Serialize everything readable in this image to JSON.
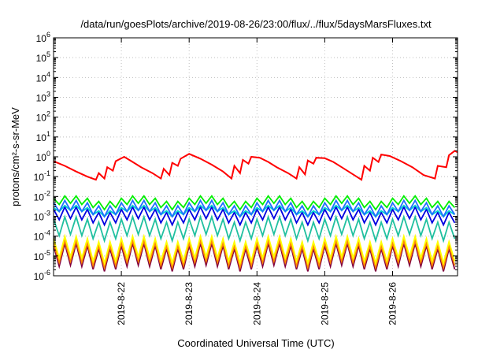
{
  "chart_data": {
    "type": "line",
    "title": "/data/run/goesPlots/archive/2019-08-26/23:00/flux/../flux/5daysMarsFluxes.txt",
    "xlabel": "Coordinated Universal Time (UTC)",
    "ylabel": "protons/cm²-s-sr-MeV",
    "xlim": [
      "2019-08-21 00:00",
      "2019-08-26 23:00"
    ],
    "ylim": [
      1e-06,
      1000000.0
    ],
    "yscale": "log",
    "grid": true,
    "legend": "none",
    "y_ticks": [
      {
        "value": 1e-06,
        "base": "10",
        "exp": "-6"
      },
      {
        "value": 1e-05,
        "base": "10",
        "exp": "-5"
      },
      {
        "value": 0.0001,
        "base": "10",
        "exp": "-4"
      },
      {
        "value": 0.001,
        "base": "10",
        "exp": "-3"
      },
      {
        "value": 0.01,
        "base": "10",
        "exp": "-2"
      },
      {
        "value": 0.1,
        "base": "10",
        "exp": "-1"
      },
      {
        "value": 1,
        "base": "10",
        "exp": "0"
      },
      {
        "value": 10,
        "base": "10",
        "exp": "1"
      },
      {
        "value": 100,
        "base": "10",
        "exp": "2"
      },
      {
        "value": 1000,
        "base": "10",
        "exp": "3"
      },
      {
        "value": 10000,
        "base": "10",
        "exp": "4"
      },
      {
        "value": 100000,
        "base": "10",
        "exp": "5"
      },
      {
        "value": 1000000,
        "base": "10",
        "exp": "6"
      }
    ],
    "x_ticks": [
      {
        "value": "2019-08-22 00:00",
        "label": "2019-8-22"
      },
      {
        "value": "2019-08-23 00:00",
        "label": "2019-8-23"
      },
      {
        "value": "2019-08-24 00:00",
        "label": "2019-8-24"
      },
      {
        "value": "2019-08-25 00:00",
        "label": "2019-8-25"
      },
      {
        "value": "2019-08-26 00:00",
        "label": "2019-8-26"
      }
    ],
    "series": [
      {
        "color": "#ff0000",
        "x": [
          "2019-08-21 00:00",
          "2019-08-21 04:00",
          "2019-08-21 08:00",
          "2019-08-21 12:00",
          "2019-08-21 15:00",
          "2019-08-21 16:00",
          "2019-08-21 18:00",
          "2019-08-21 19:00",
          "2019-08-21 21:00",
          "2019-08-21 22:00",
          "2019-08-22 01:00",
          "2019-08-22 04:00",
          "2019-08-22 07:00",
          "2019-08-22 11:00",
          "2019-08-22 14:00",
          "2019-08-22 15:00",
          "2019-08-22 17:00",
          "2019-08-22 18:00",
          "2019-08-22 20:00",
          "2019-08-22 21:00",
          "2019-08-23 00:00",
          "2019-08-23 04:00",
          "2019-08-23 08:00",
          "2019-08-23 12:00",
          "2019-08-23 15:00",
          "2019-08-23 16:00",
          "2019-08-23 18:00",
          "2019-08-23 19:00",
          "2019-08-23 21:00",
          "2019-08-23 22:00",
          "2019-08-24 01:00",
          "2019-08-24 04:00",
          "2019-08-24 07:00",
          "2019-08-24 11:00",
          "2019-08-24 14:00",
          "2019-08-24 15:00",
          "2019-08-24 17:00",
          "2019-08-24 18:00",
          "2019-08-24 20:00",
          "2019-08-24 21:00",
          "2019-08-25 00:00",
          "2019-08-25 03:00",
          "2019-08-25 06:00",
          "2019-08-25 10:00",
          "2019-08-25 13:00",
          "2019-08-25 14:00",
          "2019-08-25 16:00",
          "2019-08-25 17:00",
          "2019-08-25 19:00",
          "2019-08-25 20:00",
          "2019-08-25 23:00",
          "2019-08-26 03:00",
          "2019-08-26 07:00",
          "2019-08-26 11:00",
          "2019-08-26 15:00",
          "2019-08-26 16:00",
          "2019-08-26 19:00",
          "2019-08-26 20:00",
          "2019-08-26 22:00",
          "2019-08-26 23:00"
        ],
        "values": [
          0.6,
          0.35,
          0.18,
          0.1,
          0.07,
          0.15,
          0.08,
          0.3,
          0.2,
          0.6,
          1.0,
          0.55,
          0.3,
          0.15,
          0.08,
          0.25,
          0.12,
          0.5,
          0.35,
          0.8,
          1.4,
          0.8,
          0.4,
          0.18,
          0.08,
          0.35,
          0.15,
          0.7,
          0.45,
          1.0,
          0.9,
          0.55,
          0.3,
          0.15,
          0.08,
          0.3,
          0.13,
          0.65,
          0.45,
          0.9,
          0.85,
          0.55,
          0.3,
          0.13,
          0.07,
          0.35,
          0.2,
          0.9,
          0.55,
          1.3,
          1.1,
          0.6,
          0.3,
          0.12,
          0.08,
          0.35,
          0.3,
          1.2,
          2.0,
          1.7
        ]
      },
      {
        "color": "#00ee00",
        "base": 0.0045,
        "amp": 1.8,
        "period_h": 4,
        "start": "2019-08-21 00:00",
        "end": "2019-08-26 23:00"
      },
      {
        "color": "#1e6fff",
        "base": 0.0022,
        "amp": 2.2,
        "period_h": 4,
        "start": "2019-08-21 00:00",
        "end": "2019-08-26 23:00"
      },
      {
        "color": "#00d0d0",
        "base": 0.0018,
        "amp": 1.5,
        "period_h": 4,
        "start": "2019-08-21 00:00",
        "end": "2019-08-26 23:00"
      },
      {
        "color": "#0000e0",
        "base": 0.0009,
        "amp": 2.5,
        "period_h": 4,
        "start": "2019-08-21 00:00",
        "end": "2019-08-26 23:00"
      },
      {
        "color": "#20c0a0",
        "base": 0.00018,
        "amp": 4.0,
        "period_h": 4,
        "start": "2019-08-21 00:00",
        "end": "2019-08-26 23:00"
      },
      {
        "color": "#ffff00",
        "base": 1.5e-05,
        "amp": 5.0,
        "period_h": 4,
        "start": "2019-08-21 00:00",
        "end": "2019-08-26 23:00"
      },
      {
        "color": "#ff8800",
        "base": 9e-06,
        "amp": 5.0,
        "period_h": 4,
        "start": "2019-08-21 00:00",
        "end": "2019-08-26 23:00"
      },
      {
        "color": "#800040",
        "base": 6e-06,
        "amp": 5.5,
        "period_h": 4,
        "start": "2019-08-21 00:00",
        "end": "2019-08-26 23:00"
      }
    ]
  }
}
